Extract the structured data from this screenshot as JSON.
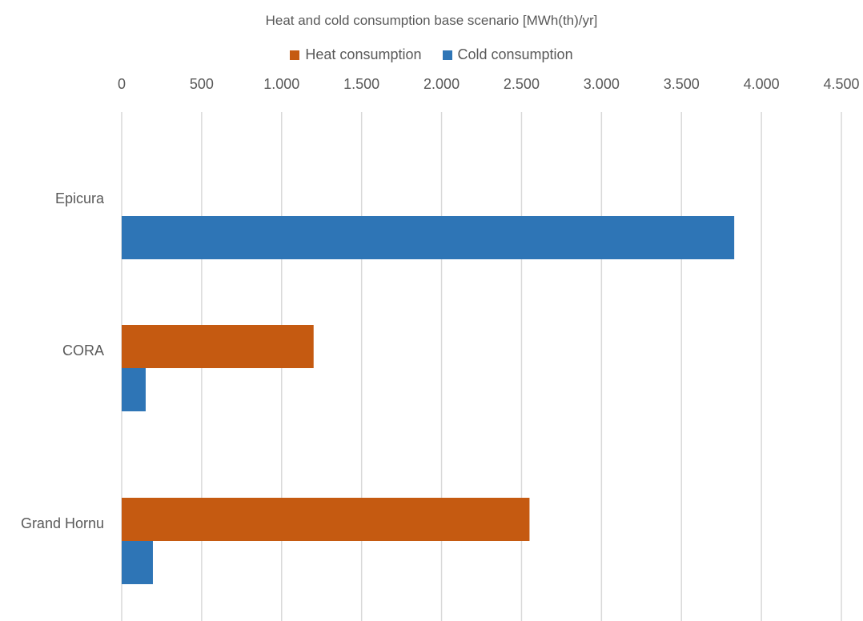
{
  "chart_data": {
    "type": "bar",
    "orientation": "horizontal",
    "title": "Heat and cold consumption base scenario [MWh(th)/yr]",
    "xlabel": "",
    "ylabel": "",
    "categories": [
      "Epicura",
      "CORA",
      "Grand Hornu"
    ],
    "series": [
      {
        "name": "Heat consumption",
        "color": "#C55A11",
        "values": [
          0,
          1200,
          2550
        ]
      },
      {
        "name": "Cold consumption",
        "color": "#2E75B6",
        "values": [
          3830,
          150,
          195
        ]
      }
    ],
    "xlim": [
      0,
      4500
    ],
    "x_ticks": [
      0,
      500,
      1000,
      1500,
      2000,
      2500,
      3000,
      3500,
      4000,
      4500
    ],
    "x_tick_labels": [
      "0",
      "500",
      "1.000",
      "1.500",
      "2.000",
      "2.500",
      "3.000",
      "3.500",
      "4.000",
      "4.500"
    ],
    "x_axis_position": "top",
    "legend_position": "top",
    "grid": true,
    "grid_color": "#D9D9D9"
  }
}
